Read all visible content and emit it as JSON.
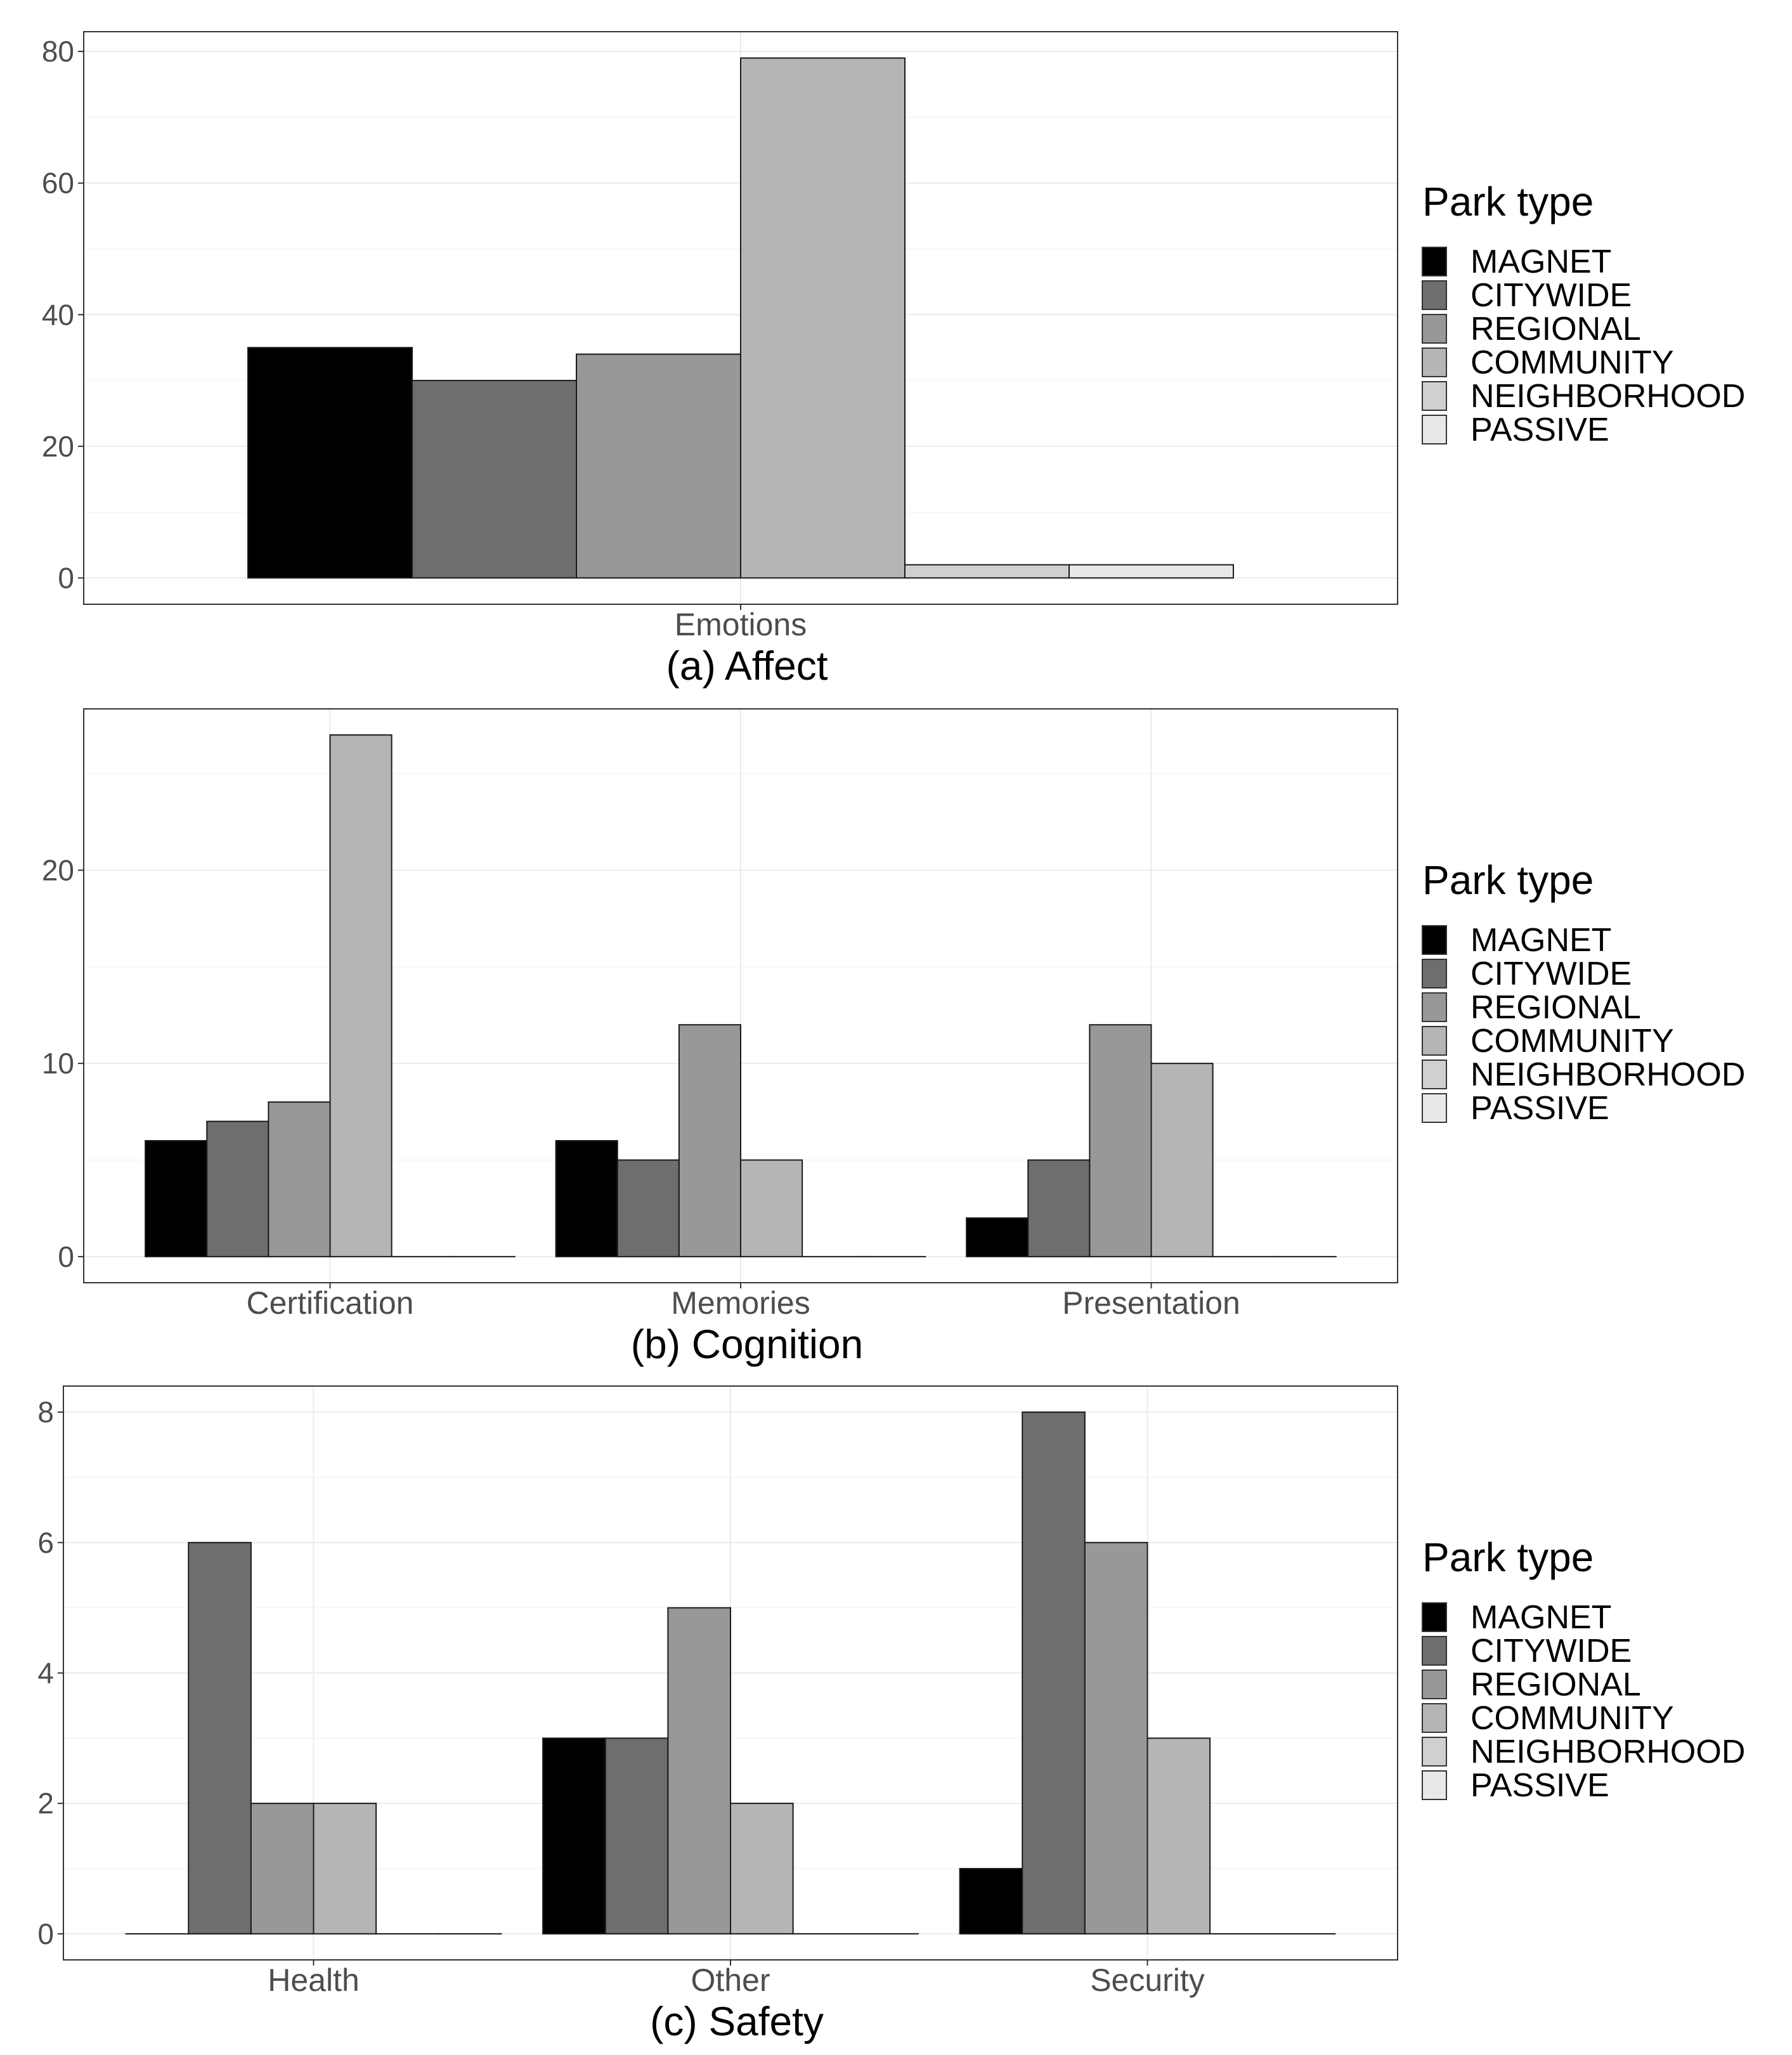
{
  "legend": {
    "title": "Park type",
    "entries": [
      "MAGNET",
      "CITYWIDE",
      "REGIONAL",
      "COMMUNITY",
      "NEIGHBORHOOD",
      "PASSIVE"
    ],
    "colors": [
      "#000000",
      "#6e6e6e",
      "#989898",
      "#b5b5b5",
      "#d0d0d0",
      "#e8e8e8"
    ]
  },
  "chart_data": [
    {
      "type": "bar",
      "title": "(a) Affect",
      "categories": [
        "Emotions"
      ],
      "xlabel": "",
      "ylabel": "",
      "ylim": [
        -4,
        83
      ],
      "yticks": [
        0,
        20,
        40,
        60,
        80
      ],
      "grid": true,
      "legend_position": "right",
      "series": [
        {
          "name": "MAGNET",
          "values": [
            35
          ]
        },
        {
          "name": "CITYWIDE",
          "values": [
            30
          ]
        },
        {
          "name": "REGIONAL",
          "values": [
            34
          ]
        },
        {
          "name": "COMMUNITY",
          "values": [
            79
          ]
        },
        {
          "name": "NEIGHBORHOOD",
          "values": [
            2
          ]
        },
        {
          "name": "PASSIVE",
          "values": [
            2
          ]
        }
      ]
    },
    {
      "type": "bar",
      "title": "(b) Cognition",
      "categories": [
        "Certification",
        "Memories",
        "Presentation"
      ],
      "xlabel": "",
      "ylabel": "",
      "ylim": [
        -1.35,
        28.35
      ],
      "yticks": [
        0,
        10,
        20
      ],
      "grid": true,
      "legend_position": "right",
      "series": [
        {
          "name": "MAGNET",
          "values": [
            6,
            6,
            2
          ]
        },
        {
          "name": "CITYWIDE",
          "values": [
            7,
            5,
            5
          ]
        },
        {
          "name": "REGIONAL",
          "values": [
            8,
            12,
            12
          ]
        },
        {
          "name": "COMMUNITY",
          "values": [
            27,
            5,
            10
          ]
        },
        {
          "name": "NEIGHBORHOOD",
          "values": [
            0,
            0,
            0
          ]
        },
        {
          "name": "PASSIVE",
          "values": [
            0,
            0,
            0
          ]
        }
      ]
    },
    {
      "type": "bar",
      "title": "(c) Safety",
      "categories": [
        "Health",
        "Other",
        "Security"
      ],
      "xlabel": "",
      "ylabel": "",
      "ylim": [
        -0.4,
        8.4
      ],
      "yticks": [
        0,
        2,
        4,
        6,
        8
      ],
      "grid": true,
      "legend_position": "right",
      "series": [
        {
          "name": "MAGNET",
          "values": [
            0,
            3,
            1
          ]
        },
        {
          "name": "CITYWIDE",
          "values": [
            6,
            3,
            8
          ]
        },
        {
          "name": "REGIONAL",
          "values": [
            2,
            5,
            6
          ]
        },
        {
          "name": "COMMUNITY",
          "values": [
            2,
            2,
            3
          ]
        },
        {
          "name": "NEIGHBORHOOD",
          "values": [
            0,
            0,
            0
          ]
        },
        {
          "name": "PASSIVE",
          "values": [
            0,
            0,
            0
          ]
        }
      ]
    }
  ]
}
